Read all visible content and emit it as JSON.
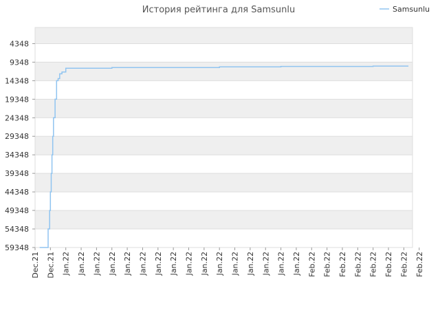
{
  "chart_data": {
    "type": "line",
    "title": "История рейтинга для Samsunlu",
    "xlabel": "",
    "ylabel": "",
    "y_inverted": true,
    "ylim": [
      59348,
      0
    ],
    "yticks": [
      4348,
      9348,
      14348,
      19348,
      24348,
      29348,
      34348,
      39348,
      44348,
      49348,
      54348,
      59348
    ],
    "xticks": [
      "Dec.21",
      "Dec.21",
      "Jan.22",
      "Jan.22",
      "Jan.22",
      "Jan.22",
      "Jan.22",
      "Jan.22",
      "Jan.22",
      "Jan.22",
      "Jan.22",
      "Jan.22",
      "Jan.22",
      "Jan.22",
      "Jan.22",
      "Jan.22",
      "Jan.22",
      "Jan.22",
      "Feb.22",
      "Feb.22",
      "Feb.22",
      "Feb.22",
      "Feb.22",
      "Feb.22",
      "Feb.22",
      "Feb.22"
    ],
    "grid": true,
    "legend": {
      "position": "top-right"
    },
    "series": [
      {
        "name": "Samsunlu",
        "color": "#90c4f0",
        "x": [
          0.3,
          0.8,
          0.85,
          0.95,
          1.0,
          1.05,
          1.1,
          1.15,
          1.2,
          1.3,
          1.4,
          1.5,
          1.6,
          1.75,
          1.9,
          2.0,
          2.1,
          2.3,
          3.0,
          4.0,
          5.0,
          6.0,
          8.0,
          10.0,
          12.0,
          14.0,
          16.0,
          18.0,
          20.0,
          22.0,
          24.3
        ],
        "y": [
          59348,
          59348,
          54348,
          49348,
          44348,
          39348,
          34348,
          29348,
          24348,
          19348,
          14348,
          13800,
          12500,
          12000,
          12000,
          11000,
          11000,
          11000,
          11000,
          11000,
          10800,
          10800,
          10800,
          10800,
          10600,
          10600,
          10500,
          10500,
          10500,
          10400,
          10400
        ]
      }
    ]
  }
}
